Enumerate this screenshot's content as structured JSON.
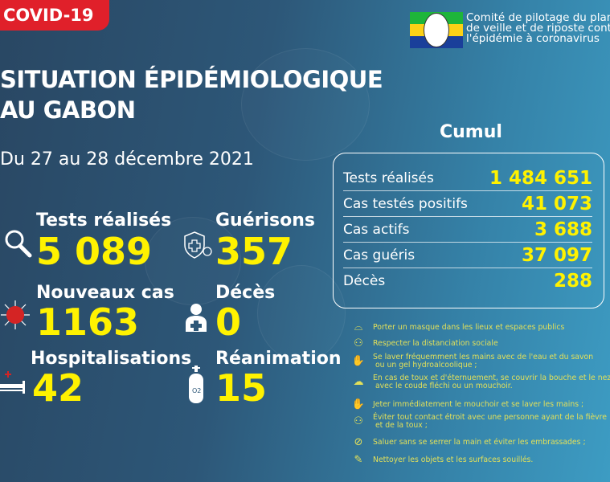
{
  "badge": "COVID-19",
  "organization": {
    "line1": "Comité de pilotage du plan",
    "line2": "de veille et de riposte contre",
    "line3": "l'épidémie à coronavirus",
    "flag_colors": [
      "#1eb53a",
      "#fcd116",
      "#3a75c4"
    ]
  },
  "title": {
    "line1": "SITUATION ÉPIDÉMIOLOGIQUE",
    "line2": "AU GABON"
  },
  "period": "Du 27 au 28 décembre 2021",
  "daily": [
    {
      "label": "Tests réalisés",
      "value": "5 089",
      "icon": "magnifier-icon"
    },
    {
      "label": "Guérisons",
      "value": "357",
      "icon": "shield-cross-icon"
    },
    {
      "label": "Nouveaux cas",
      "value": "1163",
      "icon": "virus-icon"
    },
    {
      "label": "Décès",
      "value": "0",
      "icon": "person-cross-icon"
    },
    {
      "label": "Hospitalisations",
      "value": "42",
      "icon": "hospital-bed-icon"
    },
    {
      "label": "Réanimation",
      "value": "15",
      "icon": "oxygen-tank-icon"
    }
  ],
  "cumul": {
    "title": "Cumul",
    "rows": [
      {
        "label": "Tests réalisés",
        "value": "1 484 651"
      },
      {
        "label": "Cas testés positifs",
        "value": "41 073"
      },
      {
        "label": "Cas actifs",
        "value": "3 688"
      },
      {
        "label": "Cas guéris",
        "value": "37 097"
      },
      {
        "label": "Décès",
        "value": "288"
      }
    ]
  },
  "precautions": [
    {
      "text": "Porter un masque dans les lieux et espaces publics",
      "icon": "mask-icon"
    },
    {
      "text": "Respecter la distanciation sociale",
      "icon": "distancing-icon"
    },
    {
      "text": "Se laver fréquemment les mains avec de l'eau et du savon\n ou un gel hydroalcoolique ;",
      "icon": "handwash-icon"
    },
    {
      "text": "En cas de toux et d'éternuement, se couvrir la bouche et le nez\n avec le coude fléchi ou un mouchoir.",
      "icon": "cough-icon"
    },
    {
      "text": "Jeter immédiatement le mouchoir et se laver les mains ;",
      "icon": "handwash-icon"
    },
    {
      "text": "Éviter tout contact étroit avec une personne ayant de la fièvre\n et de la toux ;",
      "icon": "distancing-icon"
    },
    {
      "text": "Saluer sans se serrer la main et éviter les embrassades ;",
      "icon": "no-handshake-icon"
    },
    {
      "text": "Nettoyer les objets et les surfaces souillés.",
      "icon": "cleaning-icon"
    }
  ],
  "colors": {
    "accent": "#fff200",
    "badge": "#e0202a",
    "tips": "#e2e05a"
  }
}
